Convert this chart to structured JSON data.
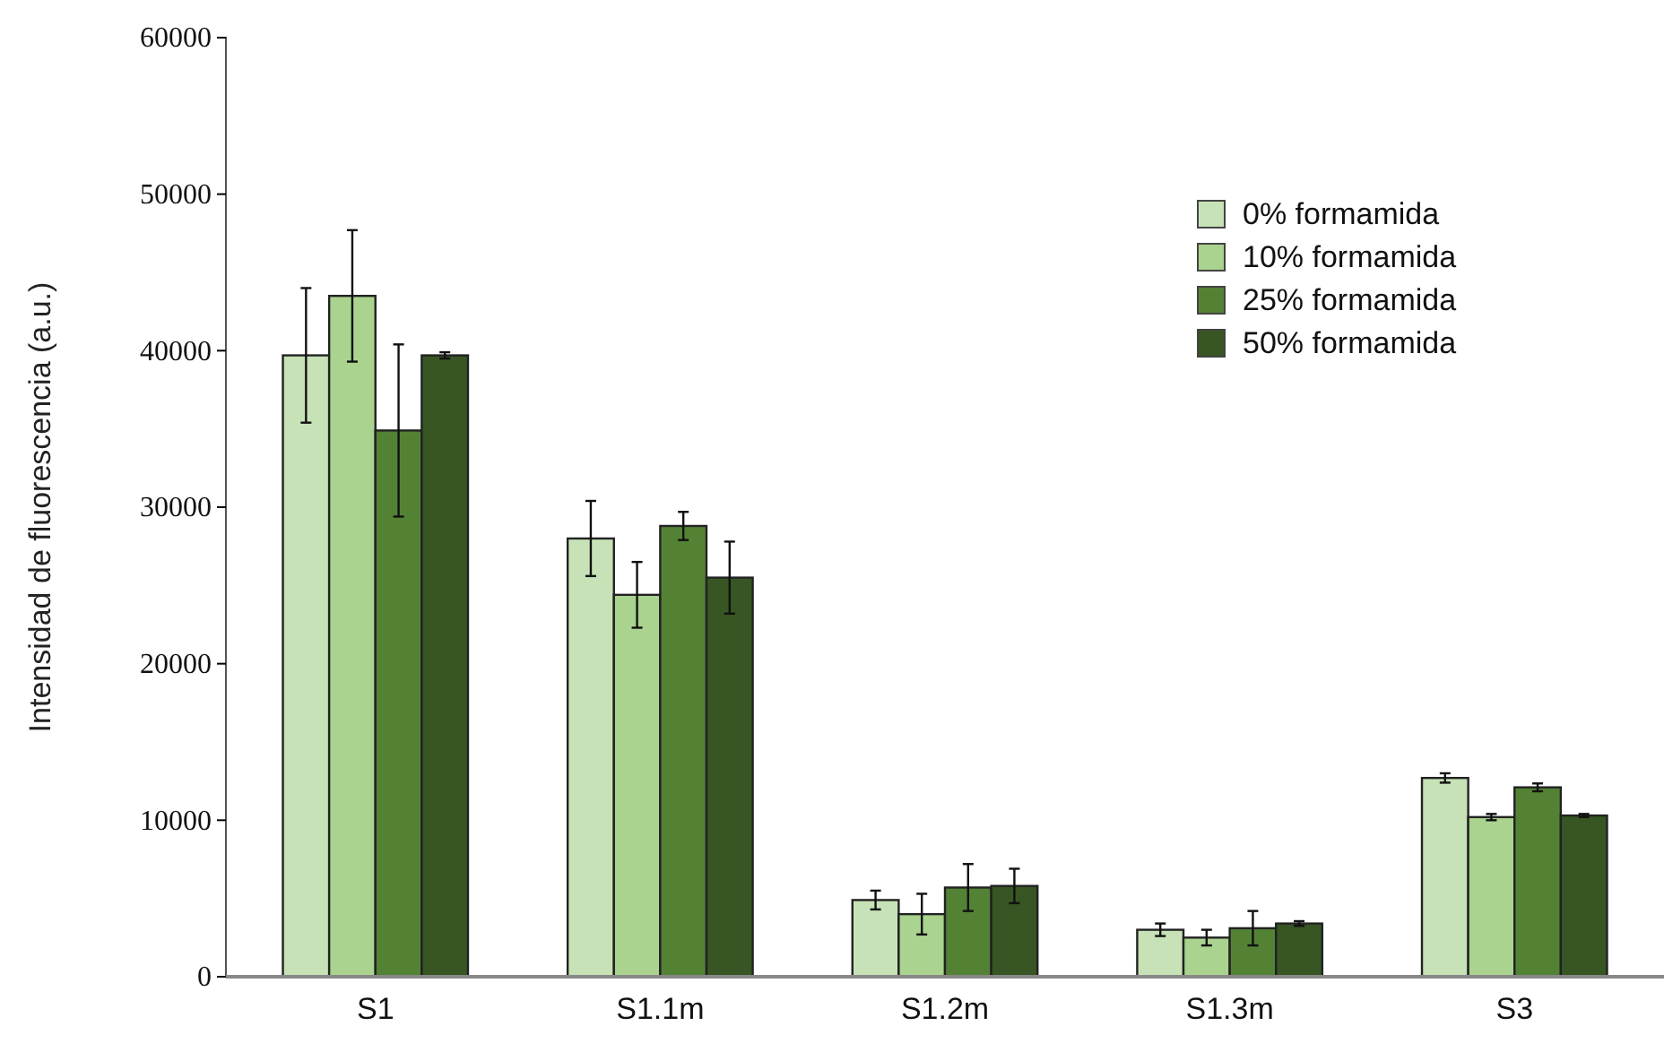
{
  "chart_data": {
    "type": "bar",
    "ylabel": "Intensidad de fluorescencia (a.u.)",
    "categories": [
      "S1",
      "S1.1m",
      "S1.2m",
      "S1.3m",
      "S3"
    ],
    "series": [
      {
        "name": "0% formamida",
        "color": "#c6e2b6",
        "values": [
          39700,
          28000,
          4900,
          3000,
          12700
        ],
        "errors": [
          4300,
          2400,
          600,
          400,
          300
        ]
      },
      {
        "name": "10% formamida",
        "color": "#a9d38e",
        "values": [
          43500,
          24400,
          4000,
          2500,
          10200
        ],
        "errors": [
          4200,
          2100,
          1300,
          500,
          200
        ]
      },
      {
        "name": "25% formamida",
        "color": "#548235",
        "values": [
          34900,
          28800,
          5700,
          3100,
          12100
        ],
        "errors": [
          5500,
          900,
          1500,
          1100,
          250
        ]
      },
      {
        "name": "50% formamida",
        "color": "#375623",
        "values": [
          39700,
          25500,
          5800,
          3400,
          10300
        ],
        "errors": [
          200,
          2300,
          1100,
          150,
          100
        ]
      }
    ],
    "ylim": [
      0,
      60000
    ],
    "yticks": [
      0,
      10000,
      20000,
      30000,
      40000,
      50000,
      60000
    ],
    "grid": false,
    "legend": "top right"
  }
}
